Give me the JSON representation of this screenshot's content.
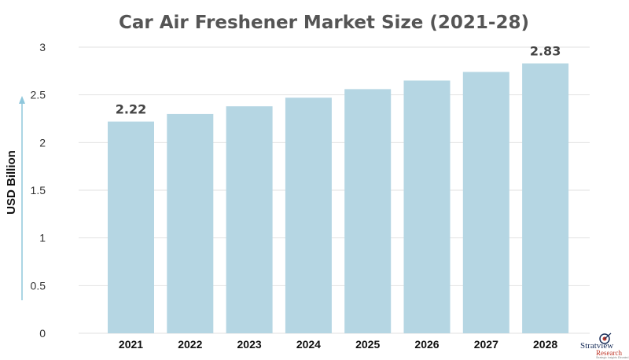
{
  "chart_data": {
    "type": "bar",
    "title": "Car Air Freshener Market Size (2021-28)",
    "ylabel": "USD Billion",
    "xlabel": "",
    "categories": [
      "2021",
      "2022",
      "2023",
      "2024",
      "2025",
      "2026",
      "2027",
      "2028"
    ],
    "values": [
      2.22,
      2.3,
      2.38,
      2.47,
      2.56,
      2.65,
      2.74,
      2.83
    ],
    "data_labels": [
      {
        "index": 0,
        "text": "2.22"
      },
      {
        "index": 7,
        "text": "2.83"
      }
    ],
    "ylim": [
      0,
      3
    ],
    "yticks": [
      "0",
      "0.5",
      "1",
      "1.5",
      "2",
      "2.5",
      "3"
    ],
    "grid": true,
    "legend": "none",
    "bar_color": "#b5d6e3",
    "grid_color": "#e2e2e2",
    "axis_arrow_color": "#8fc7dc"
  },
  "branding": {
    "name": "Stratview",
    "tagline": "Research",
    "slogan": "Strategic Insights Elevated",
    "icon": "target-logo-icon"
  }
}
